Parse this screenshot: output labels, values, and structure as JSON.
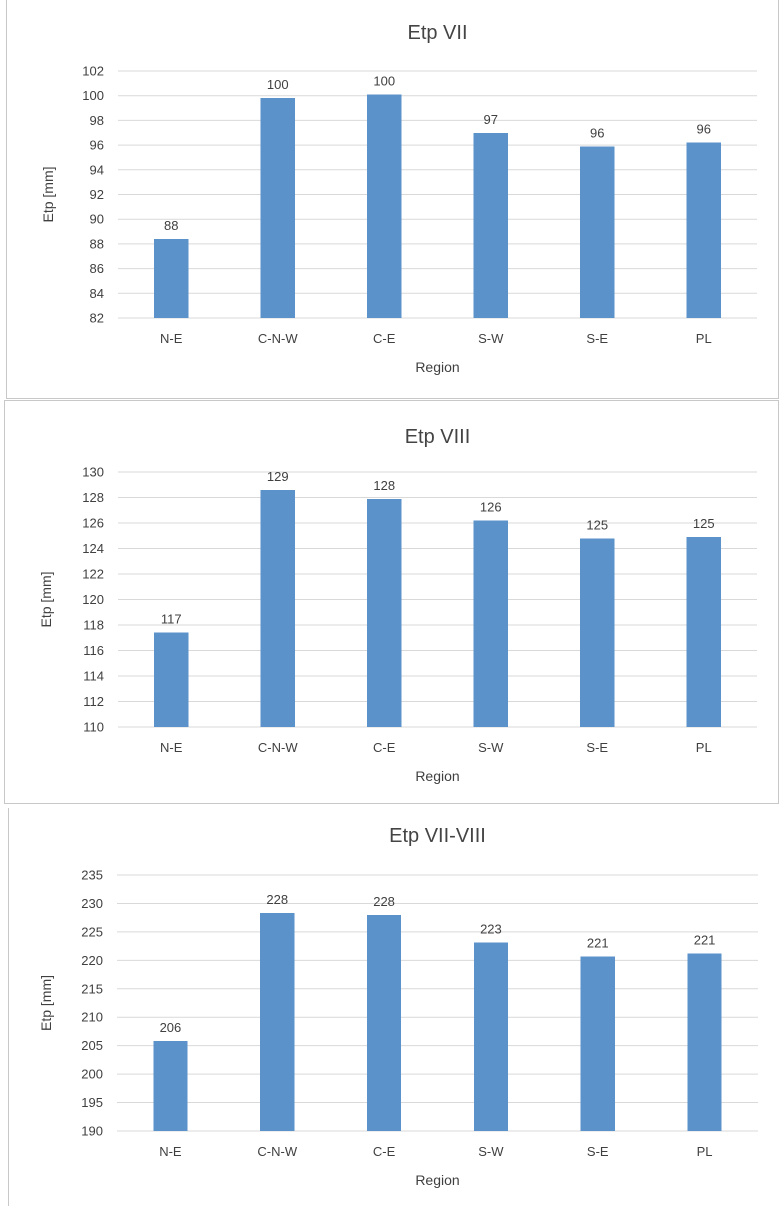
{
  "chart_data": [
    {
      "type": "bar",
      "title": "Etp VII",
      "xlabel": "Region",
      "ylabel": "Etp [mm]",
      "categories": [
        "N-E",
        "C-N-W",
        "C-E",
        "S-W",
        "S-E",
        "PL"
      ],
      "values": [
        88.4,
        99.8,
        100.1,
        97.0,
        95.9,
        96.2
      ],
      "data_labels": [
        "88",
        "100",
        "100",
        "97",
        "96",
        "96"
      ],
      "ylim": [
        82,
        102
      ],
      "yticks": [
        82,
        84,
        86,
        88,
        90,
        92,
        94,
        96,
        98,
        100,
        102
      ],
      "grid": true,
      "bar_color": "#5b92c9"
    },
    {
      "type": "bar",
      "title": "Etp VIII",
      "xlabel": "Region",
      "ylabel": "Etp [mm]",
      "categories": [
        "N-E",
        "C-N-W",
        "C-E",
        "S-W",
        "S-E",
        "PL"
      ],
      "values": [
        117.4,
        128.6,
        127.9,
        126.2,
        124.8,
        124.9
      ],
      "data_labels": [
        "117",
        "129",
        "128",
        "126",
        "125",
        "125"
      ],
      "ylim": [
        110,
        130
      ],
      "yticks": [
        110,
        112,
        114,
        116,
        118,
        120,
        122,
        124,
        126,
        128,
        130
      ],
      "grid": true,
      "bar_color": "#5b92c9"
    },
    {
      "type": "bar",
      "title": "Etp VII-VIII",
      "xlabel": "Region",
      "ylabel": "Etp [mm]",
      "categories": [
        "N-E",
        "C-N-W",
        "C-E",
        "S-W",
        "S-E",
        "PL"
      ],
      "values": [
        205.8,
        228.3,
        228.0,
        223.1,
        220.7,
        221.2
      ],
      "data_labels": [
        "206",
        "228",
        "228",
        "223",
        "221",
        "221"
      ],
      "ylim": [
        190,
        235
      ],
      "yticks": [
        190,
        195,
        200,
        205,
        210,
        215,
        220,
        225,
        230,
        235
      ],
      "grid": true,
      "bar_color": "#5b92c9"
    }
  ]
}
